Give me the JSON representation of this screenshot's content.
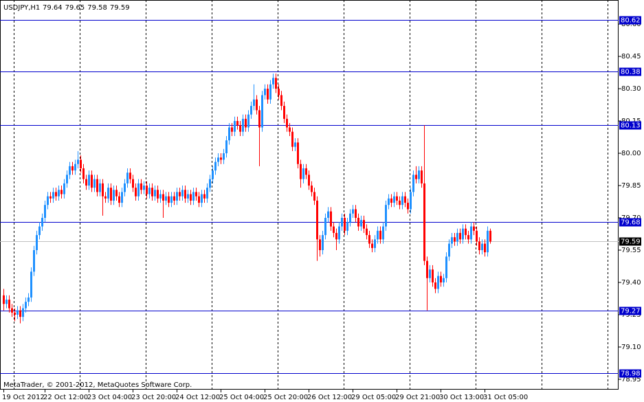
{
  "chart_data": {
    "type": "candlestick",
    "title": "USDJPY,H1",
    "credit": "MetaTrader, © 2001-2012, MetaQuotes Software Corp.",
    "up_color": "#1e90ff",
    "down_color": "#ff0000",
    "level_color": "#0000cd",
    "grid": "vertical",
    "ylim": [
      78.902,
      80.712
    ],
    "yticks": [
      {
        "value": 80.6,
        "label": "80.60"
      },
      80.45,
      {
        "value": 80.3,
        "label": "80.30"
      },
      80.15,
      {
        "value": 80.0,
        "label": "80.00"
      },
      79.85,
      {
        "value": 79.7,
        "label": "79.70"
      },
      79.55,
      {
        "value": 79.4,
        "label": "79.40"
      },
      79.25,
      {
        "value": 79.1,
        "label": "79.10"
      },
      78.95
    ],
    "levels": [
      80.62,
      80.38,
      80.13,
      79.68,
      79.27,
      78.98
    ],
    "xtick_labels": [
      "19 Oct 2012",
      "22 Oct 12:00",
      "23 Oct 04:00",
      "23 Oct 20:00",
      "24 Oct 12:00",
      "25 Oct 04:00",
      "25 Oct 20:00",
      "26 Oct 12:00",
      "29 Oct 05:00",
      "29 Oct 21:00",
      "30 Oct 13:00",
      "31 Oct 05:00"
    ],
    "candles": [
      [
        79.34,
        79.37,
        79.27,
        79.3
      ],
      [
        79.3,
        79.34,
        79.28,
        79.32
      ],
      [
        79.32,
        79.34,
        79.26,
        79.28
      ],
      [
        79.28,
        79.3,
        79.24,
        79.26
      ],
      [
        79.26,
        79.28,
        79.22,
        79.25
      ],
      [
        79.25,
        79.29,
        79.23,
        79.27
      ],
      [
        79.27,
        79.29,
        79.21,
        79.24
      ],
      [
        79.24,
        79.3,
        79.22,
        79.28
      ],
      [
        79.28,
        79.33,
        79.26,
        79.31
      ],
      [
        79.31,
        79.35,
        79.29,
        79.33
      ],
      [
        79.33,
        79.47,
        79.31,
        79.45
      ],
      [
        79.45,
        79.57,
        79.43,
        79.55
      ],
      [
        79.55,
        79.64,
        79.53,
        79.62
      ],
      [
        79.62,
        79.68,
        79.6,
        79.66
      ],
      [
        79.66,
        79.72,
        79.64,
        79.7
      ],
      [
        79.7,
        79.78,
        79.68,
        79.76
      ],
      [
        79.76,
        79.82,
        79.74,
        79.8
      ],
      [
        79.8,
        79.82,
        79.77,
        79.79
      ],
      [
        79.79,
        79.84,
        79.77,
        79.82
      ],
      [
        79.82,
        79.84,
        79.78,
        79.8
      ],
      [
        79.8,
        79.85,
        79.78,
        79.83
      ],
      [
        79.83,
        79.85,
        79.79,
        79.81
      ],
      [
        79.81,
        79.88,
        79.79,
        79.86
      ],
      [
        79.86,
        79.92,
        79.84,
        79.9
      ],
      [
        79.9,
        79.96,
        79.88,
        79.94
      ],
      [
        79.94,
        79.96,
        79.9,
        79.92
      ],
      [
        79.92,
        79.97,
        79.9,
        79.95
      ],
      [
        79.95,
        80.01,
        79.93,
        79.97
      ],
      [
        79.97,
        79.99,
        79.91,
        79.93
      ],
      [
        79.93,
        79.95,
        79.86,
        79.88
      ],
      [
        79.88,
        79.9,
        79.83,
        79.85
      ],
      [
        79.85,
        79.92,
        79.83,
        79.9
      ],
      [
        79.9,
        79.92,
        79.82,
        79.84
      ],
      [
        79.84,
        79.9,
        79.82,
        79.88
      ],
      [
        79.88,
        79.9,
        79.8,
        79.82
      ],
      [
        79.82,
        79.88,
        79.8,
        79.86
      ],
      [
        79.86,
        79.88,
        79.71,
        79.8
      ],
      [
        79.8,
        79.82,
        79.77,
        79.79
      ],
      [
        79.79,
        79.86,
        79.77,
        79.84
      ],
      [
        79.84,
        79.86,
        79.76,
        79.78
      ],
      [
        79.78,
        79.85,
        79.76,
        79.83
      ],
      [
        79.83,
        79.85,
        79.78,
        79.8
      ],
      [
        79.8,
        79.82,
        79.75,
        79.77
      ],
      [
        79.77,
        79.84,
        79.75,
        79.82
      ],
      [
        79.82,
        79.88,
        79.8,
        79.86
      ],
      [
        79.86,
        79.93,
        79.84,
        79.91
      ],
      [
        79.91,
        79.93,
        79.86,
        79.88
      ],
      [
        79.88,
        79.9,
        79.82,
        79.84
      ],
      [
        79.84,
        79.86,
        79.78,
        79.8
      ],
      [
        79.8,
        79.88,
        79.78,
        79.86
      ],
      [
        79.86,
        79.88,
        79.81,
        79.83
      ],
      [
        79.83,
        79.87,
        79.81,
        79.85
      ],
      [
        79.85,
        79.87,
        79.79,
        79.81
      ],
      [
        79.81,
        79.86,
        79.79,
        79.84
      ],
      [
        79.84,
        79.86,
        79.78,
        79.8
      ],
      [
        79.8,
        79.85,
        79.78,
        79.83
      ],
      [
        79.83,
        79.85,
        79.77,
        79.79
      ],
      [
        79.79,
        79.83,
        79.77,
        79.81
      ],
      [
        79.81,
        79.83,
        79.7,
        79.78
      ],
      [
        79.78,
        79.82,
        79.76,
        79.8
      ],
      [
        79.8,
        79.82,
        79.75,
        79.77
      ],
      [
        79.77,
        79.82,
        79.75,
        79.8
      ],
      [
        79.8,
        79.82,
        79.76,
        79.78
      ],
      [
        79.78,
        79.84,
        79.76,
        79.82
      ],
      [
        79.82,
        79.84,
        79.78,
        79.8
      ],
      [
        79.8,
        79.85,
        79.78,
        79.83
      ],
      [
        79.83,
        79.85,
        79.77,
        79.79
      ],
      [
        79.79,
        79.83,
        79.77,
        79.81
      ],
      [
        79.81,
        79.83,
        79.76,
        79.78
      ],
      [
        79.78,
        79.84,
        79.76,
        79.82
      ],
      [
        79.82,
        79.84,
        79.78,
        79.8
      ],
      [
        79.8,
        79.82,
        79.75,
        79.77
      ],
      [
        79.77,
        79.83,
        79.75,
        79.81
      ],
      [
        79.81,
        79.83,
        79.77,
        79.79
      ],
      [
        79.79,
        79.86,
        79.77,
        79.84
      ],
      [
        79.84,
        79.9,
        79.82,
        79.88
      ],
      [
        79.88,
        79.94,
        79.86,
        79.92
      ],
      [
        79.92,
        79.98,
        79.9,
        79.96
      ],
      [
        79.96,
        80.0,
        79.94,
        79.98
      ],
      [
        79.98,
        80.0,
        79.95,
        79.97
      ],
      [
        79.97,
        80.02,
        79.95,
        80.0
      ],
      [
        80.0,
        80.08,
        79.98,
        80.06
      ],
      [
        80.06,
        80.14,
        80.04,
        80.12
      ],
      [
        80.12,
        80.14,
        80.08,
        80.1
      ],
      [
        80.1,
        80.17,
        80.08,
        80.15
      ],
      [
        80.15,
        80.17,
        80.11,
        80.13
      ],
      [
        80.13,
        80.15,
        80.08,
        80.1
      ],
      [
        80.1,
        80.18,
        80.08,
        80.16
      ],
      [
        80.16,
        80.18,
        80.1,
        80.12
      ],
      [
        80.12,
        80.2,
        80.1,
        80.18
      ],
      [
        80.18,
        80.24,
        80.16,
        80.22
      ],
      [
        80.22,
        80.32,
        80.2,
        80.25
      ],
      [
        80.25,
        80.27,
        80.18,
        80.2
      ],
      [
        80.2,
        80.22,
        79.94,
        80.12
      ],
      [
        80.12,
        80.29,
        80.1,
        80.27
      ],
      [
        80.27,
        80.32,
        80.25,
        80.3
      ],
      [
        80.3,
        80.32,
        80.23,
        80.25
      ],
      [
        80.25,
        80.34,
        80.23,
        80.32
      ],
      [
        80.32,
        80.37,
        80.3,
        80.35
      ],
      [
        80.35,
        80.37,
        80.28,
        80.3
      ],
      [
        80.3,
        80.32,
        80.25,
        80.27
      ],
      [
        80.27,
        80.29,
        80.2,
        80.22
      ],
      [
        80.22,
        80.24,
        80.14,
        80.16
      ],
      [
        80.16,
        80.18,
        80.1,
        80.12
      ],
      [
        80.12,
        80.14,
        80.08,
        80.1
      ],
      [
        80.1,
        80.12,
        80.01,
        80.03
      ],
      [
        80.03,
        80.07,
        80.01,
        80.05
      ],
      [
        80.05,
        80.07,
        79.93,
        79.95
      ],
      [
        79.95,
        79.97,
        79.84,
        79.88
      ],
      [
        79.88,
        79.95,
        79.86,
        79.93
      ],
      [
        79.93,
        79.95,
        79.88,
        79.9
      ],
      [
        79.9,
        79.92,
        79.83,
        79.85
      ],
      [
        79.85,
        79.87,
        79.8,
        79.82
      ],
      [
        79.82,
        79.84,
        79.76,
        79.78
      ],
      [
        79.78,
        79.8,
        79.5,
        79.6
      ],
      [
        79.6,
        79.62,
        79.52,
        79.55
      ],
      [
        79.55,
        79.64,
        79.53,
        79.62
      ],
      [
        79.62,
        79.72,
        79.6,
        79.7
      ],
      [
        79.7,
        79.75,
        79.68,
        79.73
      ],
      [
        79.73,
        79.75,
        79.64,
        79.66
      ],
      [
        79.66,
        79.68,
        79.61,
        79.63
      ],
      [
        79.63,
        79.65,
        79.55,
        79.6
      ],
      [
        79.6,
        79.68,
        79.58,
        79.66
      ],
      [
        79.66,
        79.72,
        79.64,
        79.7
      ],
      [
        79.7,
        79.72,
        79.62,
        79.64
      ],
      [
        79.64,
        79.7,
        79.62,
        79.68
      ],
      [
        79.68,
        79.74,
        79.66,
        79.72
      ],
      [
        79.72,
        79.76,
        79.7,
        79.74
      ],
      [
        79.74,
        79.76,
        79.68,
        79.7
      ],
      [
        79.7,
        79.72,
        79.64,
        79.66
      ],
      [
        79.66,
        79.71,
        79.64,
        79.69
      ],
      [
        79.69,
        79.71,
        79.63,
        79.65
      ],
      [
        79.65,
        79.67,
        79.6,
        79.62
      ],
      [
        79.62,
        79.64,
        79.56,
        79.58
      ],
      [
        79.58,
        79.6,
        79.54,
        79.56
      ],
      [
        79.56,
        79.62,
        79.54,
        79.6
      ],
      [
        79.6,
        79.66,
        79.58,
        79.64
      ],
      [
        79.64,
        79.66,
        79.58,
        79.6
      ],
      [
        79.6,
        79.68,
        79.58,
        79.66
      ],
      [
        79.66,
        79.78,
        79.64,
        79.76
      ],
      [
        79.76,
        79.81,
        79.74,
        79.79
      ],
      [
        79.79,
        79.81,
        79.75,
        79.77
      ],
      [
        79.77,
        79.82,
        79.75,
        79.8
      ],
      [
        79.8,
        79.82,
        79.76,
        79.78
      ],
      [
        79.78,
        79.8,
        79.74,
        79.76
      ],
      [
        79.76,
        79.82,
        79.74,
        79.8
      ],
      [
        79.8,
        79.82,
        79.75,
        79.77
      ],
      [
        79.77,
        79.79,
        79.72,
        79.74
      ],
      [
        79.74,
        79.84,
        79.72,
        79.82
      ],
      [
        79.82,
        79.92,
        79.8,
        79.9
      ],
      [
        79.9,
        79.94,
        79.86,
        79.88
      ],
      [
        79.88,
        79.94,
        79.86,
        79.92
      ],
      [
        79.92,
        79.94,
        79.84,
        79.86
      ],
      [
        79.86,
        80.13,
        79.48,
        79.5
      ],
      [
        79.5,
        79.52,
        79.27,
        79.42
      ],
      [
        79.42,
        79.48,
        79.4,
        79.46
      ],
      [
        79.46,
        79.48,
        79.38,
        79.4
      ],
      [
        79.4,
        79.42,
        79.35,
        79.37
      ],
      [
        79.37,
        79.45,
        79.35,
        79.43
      ],
      [
        79.43,
        79.45,
        79.38,
        79.4
      ],
      [
        79.4,
        79.44,
        79.38,
        79.42
      ],
      [
        79.42,
        79.54,
        79.4,
        79.52
      ],
      [
        79.52,
        79.6,
        79.5,
        79.58
      ],
      [
        79.58,
        79.63,
        79.56,
        79.61
      ],
      [
        79.61,
        79.63,
        79.57,
        79.59
      ],
      [
        79.59,
        79.65,
        79.57,
        79.63
      ],
      [
        79.63,
        79.65,
        79.58,
        79.6
      ],
      [
        79.6,
        79.67,
        79.58,
        79.65
      ],
      [
        79.65,
        79.67,
        79.6,
        79.62
      ],
      [
        79.62,
        79.64,
        79.58,
        79.6
      ],
      [
        79.6,
        79.68,
        79.58,
        79.66
      ],
      [
        79.66,
        79.68,
        79.62,
        79.64
      ],
      [
        79.64,
        79.66,
        79.57,
        79.59
      ],
      [
        79.59,
        79.61,
        79.53,
        79.55
      ],
      [
        79.55,
        79.6,
        79.53,
        79.58
      ],
      [
        79.58,
        79.6,
        79.52,
        79.54
      ],
      [
        79.54,
        79.66,
        79.52,
        79.64
      ],
      [
        79.64,
        79.65,
        79.58,
        79.59
      ]
    ]
  }
}
